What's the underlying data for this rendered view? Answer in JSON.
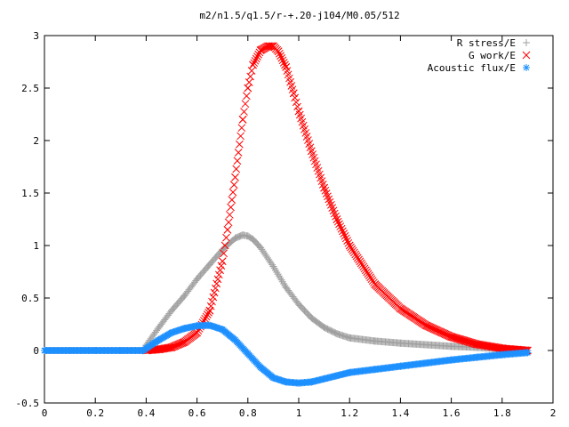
{
  "chart_data": {
    "type": "scatter",
    "title": "m2/n1.5/q1.5/r-+.20-j104/M0.05/512",
    "xlabel": "",
    "ylabel": "",
    "xlim": [
      0,
      2
    ],
    "ylim": [
      -0.5,
      3
    ],
    "x_ticks": [
      0,
      0.2,
      0.4,
      0.6,
      0.8,
      1,
      1.2,
      1.4,
      1.6,
      1.8,
      2
    ],
    "y_ticks": [
      -0.5,
      0,
      0.5,
      1,
      1.5,
      2,
      2.5,
      3
    ],
    "x_tick_labels": [
      "0",
      "0.2",
      "0.4",
      "0.6",
      "0.8",
      "1",
      "1.2",
      "1.4",
      "1.6",
      "1.8",
      "2"
    ],
    "y_tick_labels": [
      "-0.5",
      "0",
      "0.5",
      "1",
      "1.5",
      "2",
      "2.5",
      "3"
    ],
    "grid": false,
    "legend_position": "top-right",
    "series": [
      {
        "name": "R stress/E",
        "marker": "plus",
        "color": "#a0a0a0",
        "x": [
          0.0,
          0.1,
          0.2,
          0.3,
          0.39,
          0.4,
          0.45,
          0.5,
          0.55,
          0.6,
          0.65,
          0.7,
          0.75,
          0.78,
          0.8,
          0.82,
          0.85,
          0.9,
          0.95,
          1.0,
          1.05,
          1.1,
          1.15,
          1.2,
          1.3,
          1.4,
          1.5,
          1.6,
          1.7,
          1.8,
          1.9
        ],
        "y": [
          0,
          0,
          0,
          0,
          0,
          0.05,
          0.22,
          0.38,
          0.52,
          0.68,
          0.82,
          0.96,
          1.07,
          1.1,
          1.09,
          1.06,
          0.98,
          0.8,
          0.6,
          0.44,
          0.31,
          0.22,
          0.16,
          0.12,
          0.09,
          0.07,
          0.055,
          0.04,
          0.03,
          0.015,
          0.0
        ]
      },
      {
        "name": "G work/E",
        "marker": "cross",
        "color": "#ff0000",
        "x": [
          0.4,
          0.45,
          0.5,
          0.55,
          0.6,
          0.65,
          0.7,
          0.72,
          0.75,
          0.78,
          0.8,
          0.82,
          0.85,
          0.88,
          0.9,
          0.92,
          0.95,
          0.98,
          1.0,
          1.05,
          1.1,
          1.15,
          1.2,
          1.3,
          1.4,
          1.5,
          1.6,
          1.7,
          1.8,
          1.9
        ],
        "y": [
          0,
          0.01,
          0.03,
          0.08,
          0.17,
          0.38,
          0.85,
          1.15,
          1.65,
          2.2,
          2.5,
          2.72,
          2.86,
          2.9,
          2.9,
          2.85,
          2.7,
          2.45,
          2.28,
          1.9,
          1.55,
          1.25,
          1.0,
          0.63,
          0.4,
          0.24,
          0.13,
          0.06,
          0.02,
          0.0
        ]
      },
      {
        "name": "Acoustic flux/E",
        "marker": "star",
        "color": "#1e90ff",
        "x": [
          0.0,
          0.1,
          0.2,
          0.3,
          0.39,
          0.4,
          0.45,
          0.5,
          0.55,
          0.6,
          0.65,
          0.7,
          0.75,
          0.8,
          0.85,
          0.9,
          0.95,
          1.0,
          1.05,
          1.1,
          1.15,
          1.2,
          1.3,
          1.4,
          1.5,
          1.6,
          1.7,
          1.8,
          1.9
        ],
        "y": [
          0,
          0,
          0,
          0,
          0,
          0.02,
          0.1,
          0.17,
          0.21,
          0.235,
          0.24,
          0.2,
          0.1,
          -0.03,
          -0.16,
          -0.26,
          -0.3,
          -0.31,
          -0.3,
          -0.27,
          -0.24,
          -0.21,
          -0.18,
          -0.15,
          -0.12,
          -0.09,
          -0.065,
          -0.04,
          -0.02
        ]
      }
    ]
  }
}
